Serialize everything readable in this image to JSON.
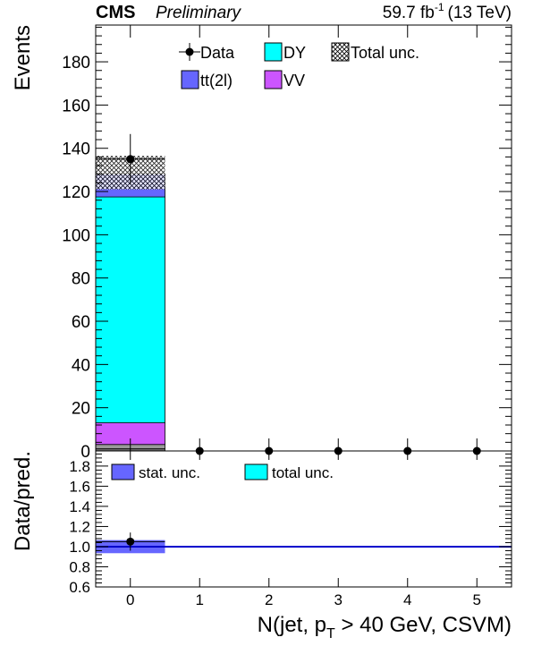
{
  "header": {
    "experiment": "CMS",
    "status": "Preliminary",
    "lumi_value": "59.7 fb",
    "lumi_exp": "-1",
    "energy": "(13 TeV)"
  },
  "colors": {
    "DY": "#00ffff",
    "ttbar_2l": "#6666ff",
    "VV": "#cc55ff",
    "other": "#888888",
    "ratio_line": "#0000cc",
    "stat_band": "#6666ff"
  },
  "chart_data": [
    {
      "type": "bar",
      "stacked": true,
      "panel": "main",
      "ylabel": "Events",
      "ylim": [
        0,
        197
      ],
      "yticks": [
        0,
        20,
        40,
        60,
        80,
        100,
        120,
        140,
        160,
        180
      ],
      "xlim": [
        -0.5,
        5.5
      ],
      "categories": [
        0,
        1,
        2,
        3,
        4,
        5
      ],
      "series": [
        {
          "name": "",
          "values": [
            1,
            0,
            0,
            0,
            0,
            0
          ],
          "color": "#666666"
        },
        {
          "name": "",
          "values": [
            2,
            0,
            0,
            0,
            0,
            0
          ],
          "color": "#999999"
        },
        {
          "name": "VV",
          "values": [
            10,
            0,
            0,
            0,
            0,
            0
          ],
          "color": "#cc55ff"
        },
        {
          "name": "DY",
          "values": [
            104.5,
            0,
            0,
            0,
            0,
            0
          ],
          "color": "#00ffff"
        },
        {
          "name": "tt(2l)",
          "values": [
            10.5,
            0,
            0,
            0,
            0,
            0
          ],
          "color": "#6666ff"
        }
      ],
      "total_unc": [
        {
          "x": 0,
          "low": 121,
          "high": 136.5
        }
      ],
      "data": {
        "name": "Data",
        "x": [
          0,
          1,
          2,
          3,
          4,
          5
        ],
        "y": [
          135,
          0,
          0,
          0,
          0,
          0
        ],
        "err": [
          11.6,
          0,
          0,
          0,
          0,
          0
        ]
      },
      "legend": {
        "placement": "top",
        "entries": [
          "Data",
          "DY",
          "Total unc.",
          "tt(2l)",
          "VV"
        ]
      }
    },
    {
      "type": "line",
      "panel": "ratio",
      "ylabel": "Data/pred.",
      "ylim": [
        0.6,
        1.95
      ],
      "yticks": [
        0.6,
        0.8,
        1.0,
        1.2,
        1.4,
        1.6,
        1.8
      ],
      "ytick_labels": [
        "0.6",
        "0.8",
        "1.0",
        "1.2",
        "1.4",
        "1.6",
        "1.8"
      ],
      "xlim": [
        -0.5,
        5.5
      ],
      "xticks": [
        0,
        1,
        2,
        3,
        4,
        5
      ],
      "xlabel": "N(jet, p",
      "xlabel_sub": "T",
      "xlabel_rest": " > 40 GeV, CSVM)",
      "reference_line": 1.0,
      "stat_unc": [
        {
          "x": 0,
          "low": 0.935,
          "high": 1.065
        }
      ],
      "data": {
        "x": [
          0
        ],
        "y": [
          1.05
        ],
        "err": [
          0.09
        ]
      },
      "legend": {
        "placement": "top-left",
        "entries": [
          "stat. unc.",
          "total unc."
        ]
      }
    }
  ]
}
